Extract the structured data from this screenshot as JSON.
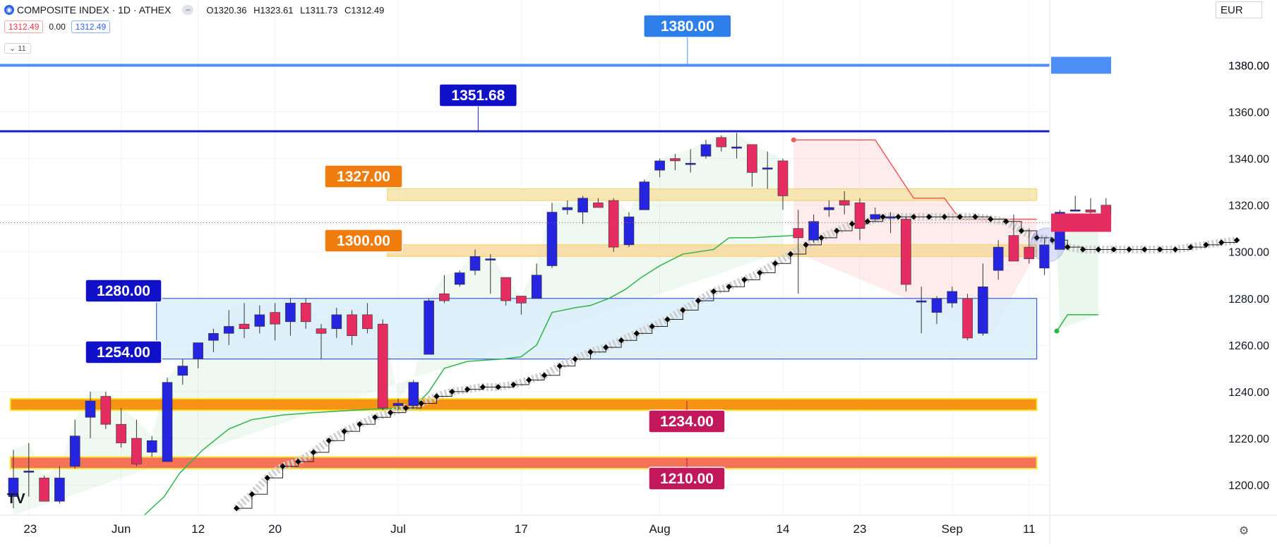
{
  "header": {
    "logo_icon": "athex-logo-icon",
    "symbol": "COMPOSITE INDEX · 1D · ATHEX",
    "collapse_icon": "collapse-icon",
    "ohlc": {
      "o": "O1320.36",
      "h": "H1323.61",
      "l": "L1311.73",
      "c": "C1312.49"
    },
    "chip_price_red": "1312.49",
    "chip_change": "0.00",
    "chip_price_blue": "1312.49",
    "indicator_toggle": "⌄ 11",
    "currency": "EUR",
    "settings_icon": "gear-icon",
    "brand_icon": "tradingview-logo-icon",
    "tv_logo_text": "TV"
  },
  "chart_data": {
    "type": "candlestick",
    "y_axis": {
      "min": 1187,
      "max": 1408,
      "ticks": [
        1200,
        1220,
        1240,
        1260,
        1280,
        1300,
        1320,
        1340,
        1360,
        1380
      ],
      "tick_labels": [
        "1200.00",
        "1220.00",
        "1240.00",
        "1260.00",
        "1280.00",
        "1300.00",
        "1320.00",
        "1340.00",
        "1360.00",
        "1380.00"
      ]
    },
    "x_axis": {
      "ticks": [
        {
          "i": 1,
          "label": "23"
        },
        {
          "i": 7,
          "label": "Jun"
        },
        {
          "i": 12,
          "label": "12"
        },
        {
          "i": 17,
          "label": "20"
        },
        {
          "i": 25,
          "label": "Jul"
        },
        {
          "i": 33,
          "label": "17"
        },
        {
          "i": 42,
          "label": "Aug"
        },
        {
          "i": 50,
          "label": "14"
        },
        {
          "i": 55,
          "label": "23"
        },
        {
          "i": 61,
          "label": "Sep"
        },
        {
          "i": 66,
          "label": "11"
        }
      ]
    },
    "candles": [
      {
        "i": 0,
        "o": 1195,
        "h": 1215,
        "l": 1190,
        "c": 1203
      },
      {
        "i": 1,
        "o": 1206,
        "h": 1218,
        "l": 1195,
        "c": 1206
      },
      {
        "i": 2,
        "o": 1203,
        "h": 1204,
        "l": 1193,
        "c": 1193
      },
      {
        "i": 3,
        "o": 1193,
        "h": 1208,
        "l": 1192,
        "c": 1203
      },
      {
        "i": 4,
        "o": 1208,
        "h": 1228,
        "l": 1207,
        "c": 1221
      },
      {
        "i": 5,
        "o": 1229,
        "h": 1240,
        "l": 1220,
        "c": 1236
      },
      {
        "i": 6,
        "o": 1238,
        "h": 1240,
        "l": 1224,
        "c": 1226
      },
      {
        "i": 7,
        "o": 1226,
        "h": 1233,
        "l": 1216,
        "c": 1218
      },
      {
        "i": 8,
        "o": 1220,
        "h": 1228,
        "l": 1208,
        "c": 1209
      },
      {
        "i": 9,
        "o": 1214,
        "h": 1221,
        "l": 1212,
        "c": 1219
      },
      {
        "i": 10,
        "o": 1210,
        "h": 1246,
        "l": 1210,
        "c": 1244
      },
      {
        "i": 11,
        "o": 1247,
        "h": 1254,
        "l": 1243,
        "c": 1251
      },
      {
        "i": 12,
        "o": 1254,
        "h": 1260,
        "l": 1250,
        "c": 1261
      },
      {
        "i": 13,
        "o": 1262,
        "h": 1267,
        "l": 1257,
        "c": 1265
      },
      {
        "i": 14,
        "o": 1265,
        "h": 1275,
        "l": 1260,
        "c": 1268
      },
      {
        "i": 15,
        "o": 1269,
        "h": 1278,
        "l": 1263,
        "c": 1267
      },
      {
        "i": 16,
        "o": 1268,
        "h": 1277,
        "l": 1265,
        "c": 1273
      },
      {
        "i": 17,
        "o": 1274,
        "h": 1278,
        "l": 1262,
        "c": 1269
      },
      {
        "i": 18,
        "o": 1270,
        "h": 1280,
        "l": 1264,
        "c": 1278
      },
      {
        "i": 19,
        "o": 1278,
        "h": 1280,
        "l": 1267,
        "c": 1270
      },
      {
        "i": 20,
        "o": 1267,
        "h": 1269,
        "l": 1254,
        "c": 1265
      },
      {
        "i": 21,
        "o": 1267,
        "h": 1276,
        "l": 1263,
        "c": 1273
      },
      {
        "i": 22,
        "o": 1273,
        "h": 1275,
        "l": 1260,
        "c": 1264
      },
      {
        "i": 23,
        "o": 1273,
        "h": 1278,
        "l": 1265,
        "c": 1267
      },
      {
        "i": 24,
        "o": 1269,
        "h": 1271,
        "l": 1232,
        "c": 1233
      },
      {
        "i": 25,
        "o": 1234,
        "h": 1237,
        "l": 1232,
        "c": 1235
      },
      {
        "i": 26,
        "o": 1234,
        "h": 1245,
        "l": 1233,
        "c": 1244
      },
      {
        "i": 27,
        "o": 1256,
        "h": 1280,
        "l": 1256,
        "c": 1279
      },
      {
        "i": 28,
        "o": 1282,
        "h": 1290,
        "l": 1278,
        "c": 1279
      },
      {
        "i": 29,
        "o": 1286,
        "h": 1292,
        "l": 1285,
        "c": 1291
      },
      {
        "i": 30,
        "o": 1292,
        "h": 1301,
        "l": 1290,
        "c": 1298
      },
      {
        "i": 31,
        "o": 1297,
        "h": 1299,
        "l": 1282,
        "c": 1297
      },
      {
        "i": 32,
        "o": 1289,
        "h": 1289,
        "l": 1277,
        "c": 1279
      },
      {
        "i": 33,
        "o": 1281,
        "h": 1281,
        "l": 1273,
        "c": 1278
      },
      {
        "i": 34,
        "o": 1280,
        "h": 1295,
        "l": 1280,
        "c": 1290
      },
      {
        "i": 35,
        "o": 1294,
        "h": 1321,
        "l": 1293,
        "c": 1317
      },
      {
        "i": 36,
        "o": 1318,
        "h": 1322,
        "l": 1316,
        "c": 1319
      },
      {
        "i": 37,
        "o": 1317,
        "h": 1324,
        "l": 1312,
        "c": 1323
      },
      {
        "i": 38,
        "o": 1321,
        "h": 1323,
        "l": 1319,
        "c": 1319
      },
      {
        "i": 39,
        "o": 1322,
        "h": 1323,
        "l": 1300,
        "c": 1302
      },
      {
        "i": 40,
        "o": 1303,
        "h": 1317,
        "l": 1302,
        "c": 1315
      },
      {
        "i": 41,
        "o": 1318,
        "h": 1331,
        "l": 1318,
        "c": 1330
      },
      {
        "i": 42,
        "o": 1335,
        "h": 1340,
        "l": 1332,
        "c": 1339
      },
      {
        "i": 43,
        "o": 1340,
        "h": 1342,
        "l": 1335,
        "c": 1339
      },
      {
        "i": 44,
        "o": 1338,
        "h": 1344,
        "l": 1334,
        "c": 1338
      },
      {
        "i": 45,
        "o": 1341,
        "h": 1348,
        "l": 1340,
        "c": 1346
      },
      {
        "i": 46,
        "o": 1349,
        "h": 1350,
        "l": 1343,
        "c": 1345
      },
      {
        "i": 47,
        "o": 1345,
        "h": 1351,
        "l": 1340,
        "c": 1345
      },
      {
        "i": 48,
        "o": 1346,
        "h": 1346,
        "l": 1328,
        "c": 1334
      },
      {
        "i": 49,
        "o": 1336,
        "h": 1343,
        "l": 1327,
        "c": 1336
      },
      {
        "i": 50,
        "o": 1339,
        "h": 1340,
        "l": 1318,
        "c": 1324
      },
      {
        "i": 51,
        "o": 1310,
        "h": 1318,
        "l": 1282,
        "c": 1306
      },
      {
        "i": 52,
        "o": 1305,
        "h": 1316,
        "l": 1304,
        "c": 1313
      },
      {
        "i": 53,
        "o": 1318,
        "h": 1322,
        "l": 1315,
        "c": 1319
      },
      {
        "i": 54,
        "o": 1322,
        "h": 1326,
        "l": 1316,
        "c": 1320
      },
      {
        "i": 55,
        "o": 1321,
        "h": 1323,
        "l": 1305,
        "c": 1310
      },
      {
        "i": 56,
        "o": 1314,
        "h": 1319,
        "l": 1313,
        "c": 1316
      },
      {
        "i": 57,
        "o": 1315,
        "h": 1317,
        "l": 1308,
        "c": 1315
      },
      {
        "i": 58,
        "o": 1314,
        "h": 1315,
        "l": 1283,
        "c": 1286
      },
      {
        "i": 59,
        "o": 1279,
        "h": 1285,
        "l": 1265,
        "c": 1279
      },
      {
        "i": 60,
        "o": 1274,
        "h": 1281,
        "l": 1269,
        "c": 1280
      },
      {
        "i": 61,
        "o": 1278,
        "h": 1285,
        "l": 1276,
        "c": 1283
      },
      {
        "i": 62,
        "o": 1280,
        "h": 1282,
        "l": 1262,
        "c": 1263
      },
      {
        "i": 63,
        "o": 1265,
        "h": 1295,
        "l": 1264,
        "c": 1285
      },
      {
        "i": 64,
        "o": 1292,
        "h": 1305,
        "l": 1288,
        "c": 1302
      },
      {
        "i": 65,
        "o": 1307,
        "h": 1316,
        "l": 1296,
        "c": 1296
      },
      {
        "i": 66,
        "o": 1302,
        "h": 1310,
        "l": 1295,
        "c": 1297
      },
      {
        "i": 67,
        "o": 1293,
        "h": 1306,
        "l": 1290,
        "c": 1303
      },
      {
        "i": 68,
        "o": 1301,
        "h": 1318,
        "l": 1301,
        "c": 1317
      },
      {
        "i": 69,
        "o": 1318,
        "h": 1324,
        "l": 1318,
        "c": 1318
      },
      {
        "i": 70,
        "o": 1318,
        "h": 1323,
        "l": 1316,
        "c": 1317
      },
      {
        "i": 71,
        "o": 1320,
        "h": 1323,
        "l": 1311,
        "c": 1312
      }
    ],
    "current_price": 1312.49,
    "current_price_label": "1312.49",
    "horizontal_lines": [
      {
        "value": 1380,
        "label": "1380.00",
        "color": "#4e8ef7",
        "label_color": "#2f7fea"
      },
      {
        "value": 1351.68,
        "label": "1351.68",
        "color": "#1c1cc7",
        "label_color": "#1010c8"
      }
    ],
    "zones": [
      {
        "from": 1322,
        "to": 1327,
        "label": "1327.00",
        "color": "#f5e3a8",
        "label_color": "#f07c0e"
      },
      {
        "from": 1298,
        "to": 1303,
        "label": "1300.00",
        "color": "#f8d9a0",
        "label_color": "#f07c0e"
      },
      {
        "from": 1254,
        "to": 1280,
        "label_top": "1280.00",
        "label_bottom": "1254.00",
        "color": "#d9effa",
        "label_color": "#1010c8"
      },
      {
        "from": 1232,
        "to": 1237,
        "label": "1234.00",
        "color": "#f58c07",
        "label_color": "#c2185b"
      },
      {
        "from": 1207,
        "to": 1212,
        "label": "1210.00",
        "color": "#f46a4e",
        "label_color": "#c2185b"
      }
    ],
    "axis_price_labels": [
      {
        "value": 1380,
        "text": "1380.00"
      }
    ],
    "colors": {
      "up": "#2525e0",
      "down": "#e52d62",
      "green_line": "#2db54a",
      "red_line": "#f05a5a",
      "wave": "#cfcfcf",
      "wave_dot": "#000000"
    }
  }
}
